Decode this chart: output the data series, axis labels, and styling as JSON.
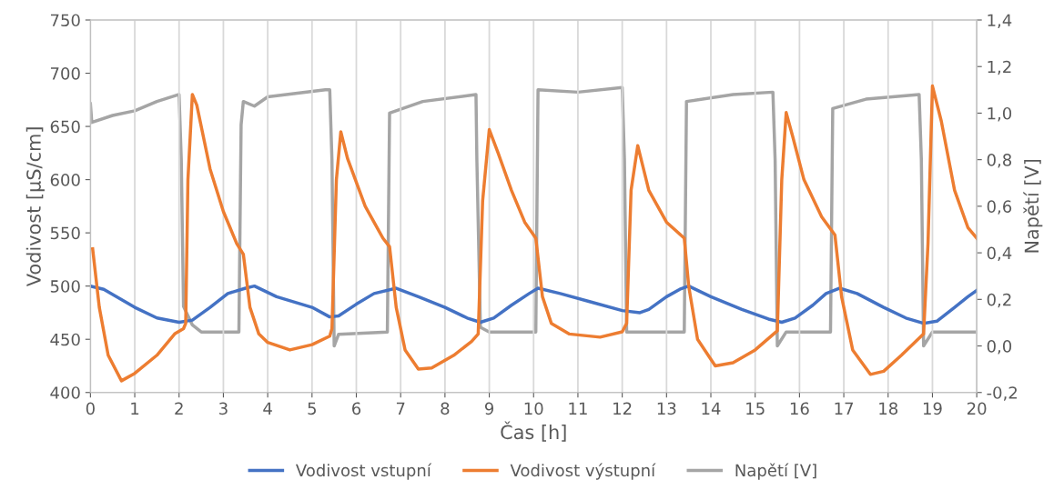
{
  "chart_data": {
    "type": "line",
    "xlabel": "Čas [h]",
    "ylabel": "Vodivost [µS/cm]",
    "y2label": "Napětí [V]",
    "grid": "x",
    "legend": "bottom",
    "marker": "none",
    "line_style": "solid",
    "xlim": [
      0,
      20
    ],
    "xticks": [
      0,
      1,
      2,
      3,
      4,
      5,
      6,
      7,
      8,
      9,
      10,
      11,
      12,
      13,
      14,
      15,
      16,
      17,
      18,
      19,
      20
    ],
    "ylim": [
      400,
      750
    ],
    "yticks": [
      400,
      450,
      500,
      550,
      600,
      650,
      700,
      750
    ],
    "y2lim": [
      -0.2,
      1.4
    ],
    "y2ticks": [
      {
        "value": -0.2,
        "label": "-0,2"
      },
      {
        "value": 0,
        "label": "0,0"
      },
      {
        "value": 0.2,
        "label": "0,2"
      },
      {
        "value": 0.4,
        "label": "0,4"
      },
      {
        "value": 0.6,
        "label": "0,6"
      },
      {
        "value": 0.8,
        "label": "0,8"
      },
      {
        "value": 1.0,
        "label": "1,0"
      },
      {
        "value": 1.2,
        "label": "1,2"
      },
      {
        "value": 1.4,
        "label": "1,4"
      }
    ],
    "series": [
      {
        "name": "Vodivost vstupní",
        "color": "#4472c4",
        "x": [
          0,
          0.3,
          1,
          1.5,
          2,
          2.3,
          2.7,
          3.1,
          3.5,
          3.7,
          4.2,
          5,
          5.4,
          5.6,
          6,
          6.4,
          6.9,
          7.4,
          8,
          8.5,
          8.8,
          9.1,
          9.5,
          9.9,
          10.1,
          10.6,
          11.3,
          12,
          12.4,
          12.6,
          13,
          13.3,
          13.5,
          14,
          14.7,
          15.3,
          15.6,
          15.9,
          16.3,
          16.6,
          16.9,
          17.3,
          17.9,
          18.4,
          18.8,
          19.1,
          19.5,
          19.8,
          20
        ],
        "values": [
          500,
          497,
          480,
          470,
          466,
          468,
          480,
          493,
          498,
          500,
          490,
          480,
          471,
          472,
          483,
          493,
          498,
          490,
          480,
          470,
          466,
          470,
          482,
          493,
          498,
          493,
          485,
          477,
          475,
          478,
          490,
          497,
          500,
          490,
          478,
          469,
          466,
          470,
          482,
          493,
          498,
          493,
          480,
          470,
          465,
          467,
          480,
          490,
          496
        ]
      },
      {
        "name": "Vodivost výstupní",
        "color": "#ed7d31",
        "x": [
          0.05,
          0.2,
          0.4,
          0.7,
          1.0,
          1.5,
          1.9,
          2.1,
          2.15,
          2.2,
          2.3,
          2.4,
          2.7,
          3.0,
          3.3,
          3.45,
          3.6,
          3.8,
          4.0,
          4.5,
          5.0,
          5.4,
          5.45,
          5.55,
          5.65,
          5.8,
          6.2,
          6.6,
          6.75,
          6.9,
          7.1,
          7.4,
          7.7,
          8.2,
          8.6,
          8.75,
          8.85,
          9.0,
          9.2,
          9.5,
          9.8,
          10.05,
          10.2,
          10.4,
          10.8,
          11.5,
          12.0,
          12.1,
          12.2,
          12.35,
          12.6,
          13.0,
          13.4,
          13.5,
          13.7,
          14.1,
          14.5,
          15.0,
          15.5,
          15.6,
          15.7,
          15.85,
          16.1,
          16.5,
          16.8,
          16.95,
          17.2,
          17.6,
          17.9,
          18.3,
          18.8,
          18.9,
          19.0,
          19.2,
          19.5,
          19.8,
          20
        ],
        "values": [
          535,
          480,
          435,
          411,
          418,
          435,
          455,
          460,
          465,
          600,
          680,
          670,
          610,
          570,
          540,
          530,
          480,
          455,
          447,
          440,
          445,
          453,
          460,
          600,
          645,
          620,
          575,
          545,
          537,
          480,
          440,
          422,
          423,
          435,
          448,
          455,
          580,
          647,
          625,
          590,
          560,
          545,
          490,
          465,
          455,
          452,
          457,
          465,
          590,
          632,
          590,
          560,
          545,
          500,
          450,
          425,
          428,
          440,
          458,
          600,
          663,
          640,
          600,
          565,
          548,
          490,
          440,
          417,
          420,
          435,
          455,
          540,
          688,
          655,
          590,
          555,
          545
        ]
      },
      {
        "name": "Napětí [V]",
        "color": "#a5a5a5",
        "axis": "y2",
        "x": [
          0,
          0.03,
          0.5,
          1,
          1.5,
          2.0,
          2.05,
          2.1,
          2.3,
          2.5,
          3.35,
          3.4,
          3.45,
          3.7,
          4.0,
          5.3,
          5.4,
          5.45,
          5.5,
          5.6,
          6.7,
          6.75,
          7.5,
          8.7,
          8.72,
          8.8,
          9.0,
          10.05,
          10.1,
          11,
          12.0,
          12.05,
          12.1,
          13.4,
          13.45,
          14.5,
          15.4,
          15.45,
          15.5,
          15.7,
          16.7,
          16.75,
          17.5,
          18.7,
          18.75,
          18.8,
          19.0,
          20
        ],
        "values": [
          1.04,
          0.96,
          0.99,
          1.01,
          1.05,
          1.08,
          0.8,
          0.17,
          0.09,
          0.06,
          0.06,
          0.95,
          1.05,
          1.03,
          1.07,
          1.1,
          1.1,
          0.8,
          0.0,
          0.05,
          0.06,
          1.0,
          1.05,
          1.08,
          0.8,
          0.08,
          0.06,
          0.06,
          1.1,
          1.09,
          1.11,
          0.8,
          0.06,
          0.06,
          1.05,
          1.08,
          1.09,
          0.8,
          0.0,
          0.06,
          0.06,
          1.02,
          1.06,
          1.08,
          0.8,
          0.0,
          0.06,
          0.06
        ]
      }
    ]
  }
}
